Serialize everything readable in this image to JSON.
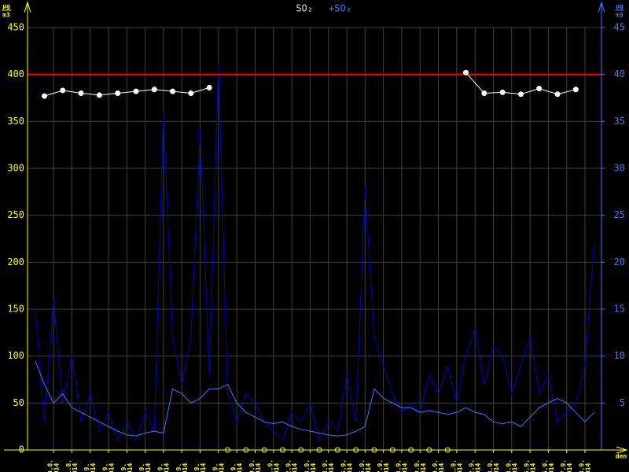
{
  "chart_data": {
    "type": "line",
    "xlim": [
      -1.42,
      29.9
    ],
    "xticks": [
      {
        "value": 0,
        "label": "30.8."
      },
      {
        "value": 1,
        "label": "31.8."
      },
      {
        "value": 2,
        "label": "1.9."
      },
      {
        "value": 3,
        "label": "2.9."
      },
      {
        "value": 4,
        "label": "3.9."
      },
      {
        "value": 5,
        "label": "4.9."
      },
      {
        "value": 6,
        "label": "5.9."
      },
      {
        "value": 7,
        "label": "6.9."
      },
      {
        "value": 8,
        "label": "7.9."
      },
      {
        "value": 9,
        "label": "8.9."
      },
      {
        "value": 10,
        "label": "9.9."
      },
      {
        "value": 11,
        "label": "10.9."
      },
      {
        "value": 12,
        "label": "11.9."
      },
      {
        "value": 13,
        "label": "12.9."
      },
      {
        "value": 14,
        "label": "13.9."
      },
      {
        "value": 15,
        "label": "14.9."
      },
      {
        "value": 16,
        "label": "15.9."
      },
      {
        "value": 17,
        "label": "16.9."
      },
      {
        "value": 18,
        "label": "17.9."
      },
      {
        "value": 19,
        "label": "18.9."
      },
      {
        "value": 20,
        "label": "19.9."
      },
      {
        "value": 21,
        "label": "20.9."
      },
      {
        "value": 22,
        "label": "21.9."
      },
      {
        "value": 23,
        "label": "22.9."
      },
      {
        "value": 24,
        "label": "23.9."
      },
      {
        "value": 25,
        "label": "24.9."
      },
      {
        "value": 26,
        "label": "25.9."
      },
      {
        "value": 27,
        "label": "26.9."
      },
      {
        "value": 28,
        "label": "27.9."
      },
      {
        "value": 29,
        "label": "28.9."
      }
    ],
    "x_year": "2014",
    "x_label": "den",
    "ylim": [
      0,
      450
    ],
    "yticks": [
      0,
      50,
      100,
      150,
      200,
      250,
      300,
      350,
      400,
      450
    ],
    "y2lim": [
      0,
      45
    ],
    "y2ticks": [
      5,
      10,
      15,
      20,
      25,
      30,
      35,
      40,
      45
    ],
    "y_unit": {
      "num": "µg",
      "den": "m3"
    },
    "y2_unit": {
      "num": "µg",
      "den": "m3"
    },
    "grid": true,
    "limit": 400,
    "limit_color": "#ff0000",
    "axis_color": "#ffff00",
    "axis2_color": "#3c78ff",
    "series": [
      {
        "name": "SO₂",
        "color": "#ffffff",
        "x": [
          -0.5,
          0.5,
          1.5,
          2.5,
          3.5,
          4.5,
          5.5,
          6.5,
          7.5,
          8.5,
          9.5,
          10.5,
          11.5,
          12.5,
          13.5,
          14.5,
          15.5,
          16.5,
          17.5,
          18.5,
          19.5,
          20.5,
          21.5,
          22.5,
          23.5,
          24.5,
          25.5,
          26.5,
          27.5,
          28.5
        ],
        "values": [
          377,
          383,
          380,
          378,
          380,
          382,
          384,
          382,
          380,
          386,
          null,
          null,
          null,
          null,
          null,
          null,
          null,
          null,
          null,
          null,
          null,
          null,
          null,
          402,
          380,
          381,
          379,
          385,
          379,
          384
        ]
      },
      {
        "name": "+SO₂",
        "color": "#0000c8",
        "axis": "y2",
        "x": [
          -1,
          -0.5,
          0,
          0.5,
          1,
          1.5,
          2,
          2.5,
          3,
          3.5,
          4,
          4.5,
          5,
          5.5,
          6,
          6.5,
          7,
          7.5,
          8,
          8.5,
          9,
          9.5,
          10,
          10.5,
          11,
          11.5,
          12,
          12.5,
          13,
          13.5,
          14,
          14.5,
          15,
          15.5,
          16,
          16.5,
          17,
          17.5,
          18,
          18.5,
          19,
          19.5,
          20,
          20.5,
          21,
          21.5,
          22,
          22.5,
          23,
          23.5,
          24,
          24.5,
          25,
          25.5,
          26,
          26.5,
          27,
          27.5,
          28,
          28.5,
          29,
          29.5
        ],
        "values": [
          15,
          3,
          16,
          5,
          10,
          3,
          6,
          2,
          4,
          1,
          3,
          1,
          4,
          2,
          36,
          12,
          7,
          12,
          34,
          8,
          41,
          6,
          3,
          6,
          5,
          3,
          2,
          1,
          4,
          3,
          5,
          1,
          3,
          2,
          8,
          3,
          28,
          12,
          9,
          6,
          4,
          5,
          4,
          8,
          6,
          9,
          5,
          10,
          13,
          7,
          11,
          10,
          6,
          9,
          12,
          6,
          8,
          3,
          4,
          5,
          9,
          22
        ]
      }
    ],
    "trend": {
      "color": "#3c78ff",
      "axis": "y2",
      "x": [
        -1,
        -0.5,
        0,
        0.5,
        1,
        1.5,
        2,
        2.5,
        3,
        3.5,
        4,
        4.5,
        5,
        5.5,
        6,
        6.5,
        7,
        7.5,
        8,
        8.5,
        9,
        9.5,
        10,
        10.5,
        11,
        11.5,
        12,
        12.5,
        13,
        13.5,
        14,
        14.5,
        15,
        15.5,
        16,
        16.5,
        17,
        17.5,
        18,
        18.5,
        19,
        19.5,
        20,
        20.5,
        21,
        21.5,
        22,
        22.5,
        23,
        23.5,
        24,
        24.5,
        25,
        25.5,
        26,
        26.5,
        27,
        27.5,
        28,
        28.5,
        29,
        29.5
      ],
      "values": [
        9.5,
        7,
        5,
        6,
        4.5,
        4,
        3.5,
        3,
        2.5,
        2,
        1.6,
        1.5,
        1.8,
        2,
        1.8,
        6.5,
        6,
        5,
        5.5,
        6.5,
        6.5,
        7,
        5,
        4,
        3.5,
        3,
        2.8,
        3,
        2.5,
        2.2,
        2,
        1.8,
        1.6,
        1.5,
        1.6,
        2,
        2.5,
        6.5,
        5.5,
        5,
        4.5,
        4.5,
        4,
        4.2,
        4,
        3.8,
        4,
        4.5,
        4,
        3.8,
        3,
        2.8,
        3,
        2.5,
        3.5,
        4.5,
        5,
        5.5,
        5,
        4,
        3,
        4
      ]
    }
  }
}
